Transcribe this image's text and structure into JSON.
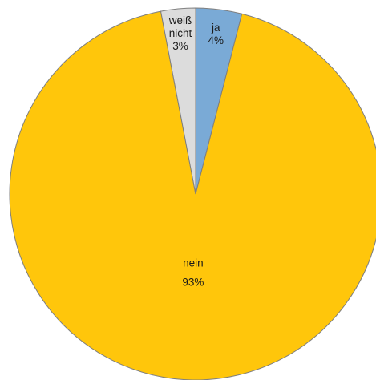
{
  "chart_data": {
    "type": "pie",
    "title": "",
    "start_angle_deg": 0,
    "direction": "clockwise",
    "slices": [
      {
        "label": "ja",
        "value": 4,
        "percent_label": "4%",
        "color": "#7aaad6"
      },
      {
        "label": "nein",
        "value": 93,
        "percent_label": "93%",
        "color": "#ffc60b"
      },
      {
        "label": "weiß nicht",
        "value": 3,
        "percent_label": "3%",
        "color": "#dcdcdc"
      }
    ],
    "stroke_color": "#7f7f7f",
    "legend": "none"
  }
}
